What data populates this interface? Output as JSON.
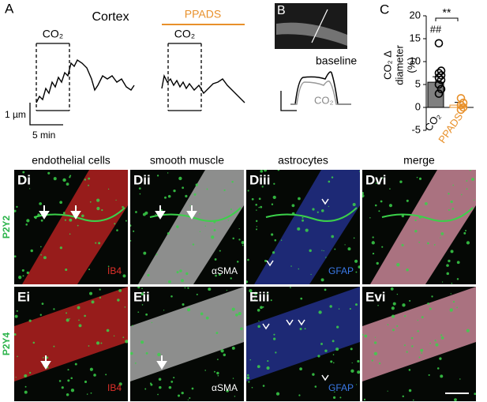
{
  "panel_a": {
    "label": "A",
    "title": "Cortex",
    "treatment": "PPADS",
    "stimulus": "CO₂",
    "scale_y": "1 µm",
    "scale_x": "5 min"
  },
  "panel_b": {
    "label": "B",
    "trace_labels": [
      "baseline",
      "CO₂"
    ]
  },
  "chart_data": {
    "type": "bar",
    "label": "C",
    "y_label": [
      "CO₂ Δ",
      "diameter",
      "(%)"
    ],
    "categories": [
      "CO₂",
      "PPADS"
    ],
    "values": [
      5.5,
      0.5
    ],
    "errors": [
      1.2,
      0.6
    ],
    "colors": [
      "#808080",
      "#e8902a"
    ],
    "points": [
      [
        14,
        8,
        7.5,
        7,
        6.5,
        6,
        5,
        4,
        3
      ],
      [
        2,
        1,
        0.5,
        0,
        -0.5
      ]
    ],
    "annotations": [
      "##",
      "**"
    ],
    "ylim": [
      -5,
      20
    ],
    "yticks": [
      -5,
      0,
      5,
      10,
      15,
      20
    ]
  },
  "micrographs": {
    "columns": [
      "endothelial cells",
      "smooth muscle",
      "astrocytes",
      "merge"
    ],
    "rows": [
      {
        "receptor": "P2Y2",
        "panels": [
          "Di",
          "Dii",
          "Diii",
          "Dvi"
        ],
        "stains": [
          "IB4",
          "αSMA",
          "GFAP"
        ]
      },
      {
        "receptor": "P2Y4",
        "panels": [
          "Ei",
          "Eii",
          "Eiii",
          "Evi"
        ],
        "stains": [
          "IB4",
          "αSMA",
          "GFAP"
        ]
      }
    ]
  }
}
